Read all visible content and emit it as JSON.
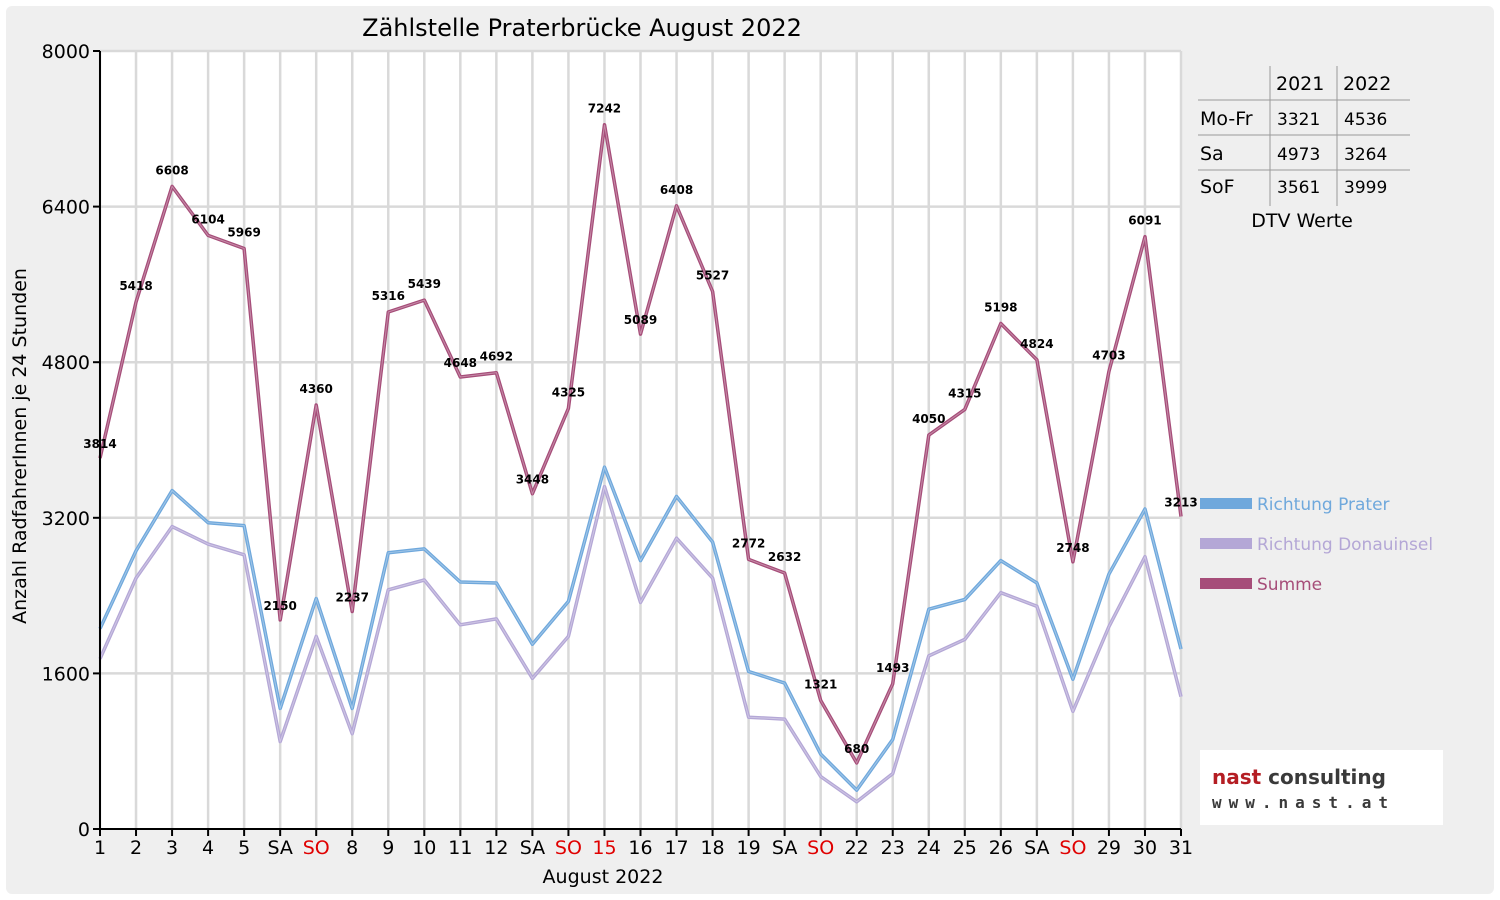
{
  "chart_data": {
    "type": "line",
    "title": "Zählstelle Praterbrücke August 2022",
    "xlabel": "August 2022",
    "ylabel": "Anzahl RadfahrerInnen je 24 Stunden",
    "ylim": [
      0,
      8000
    ],
    "yticks": [
      0,
      1600,
      3200,
      4800,
      6400,
      8000
    ],
    "grid": true,
    "legend_position": "right",
    "categories": [
      "1",
      "2",
      "3",
      "4",
      "5",
      "SA",
      "SO",
      "8",
      "9",
      "10",
      "11",
      "12",
      "SA",
      "SO",
      "15",
      "16",
      "17",
      "18",
      "19",
      "SA",
      "SO",
      "22",
      "23",
      "24",
      "25",
      "26",
      "SA",
      "SO",
      "29",
      "30",
      "31"
    ],
    "red_categories": [
      6,
      13,
      14,
      20,
      27
    ],
    "series": [
      {
        "name": "Richtung Prater",
        "color": "#6fa8dc",
        "values": [
          2060,
          2860,
          3480,
          3150,
          3120,
          1240,
          2370,
          1240,
          2840,
          2880,
          2540,
          2530,
          1900,
          2340,
          3720,
          2760,
          3420,
          2950,
          1620,
          1500,
          770,
          400,
          920,
          2260,
          2360,
          2760,
          2530,
          1540,
          2620,
          3290,
          1850
        ]
      },
      {
        "name": "Richtung Donauinsel",
        "color": "#b4a7d6",
        "values": [
          1750,
          2580,
          3110,
          2930,
          2820,
          900,
          1980,
          980,
          2460,
          2560,
          2100,
          2160,
          1550,
          1980,
          3520,
          2330,
          2990,
          2580,
          1150,
          1130,
          540,
          280,
          570,
          1780,
          1950,
          2430,
          2290,
          1210,
          2080,
          2800,
          1360
        ]
      },
      {
        "name": "Summe",
        "color": "#a64d79",
        "values": [
          3814,
          5418,
          6608,
          6104,
          5969,
          2150,
          4360,
          2237,
          5316,
          5439,
          4648,
          4692,
          3448,
          4325,
          7242,
          5089,
          6408,
          5527,
          2772,
          2632,
          1321,
          680,
          1493,
          4050,
          4315,
          5198,
          4824,
          2748,
          4703,
          6091,
          3213
        ]
      }
    ],
    "data_labels": [
      "3814",
      "5418",
      "6608",
      "6104",
      "5969",
      "2150",
      "4360",
      "2237",
      "5316",
      "5439",
      "4648",
      "4692",
      "3448",
      "4325",
      "7242",
      "5089",
      "6408",
      "5527",
      "2772",
      "2632",
      "1321",
      "680",
      "1493",
      "4050",
      "4315",
      "5198",
      "4824",
      "2748",
      "4703",
      "6091",
      "3213"
    ]
  },
  "dtv_table": {
    "caption": "DTV Werte",
    "headers": [
      "",
      "2021",
      "2022"
    ],
    "rows": [
      [
        "Mo-Fr",
        "3321",
        "4536"
      ],
      [
        "Sa",
        "4973",
        "3264"
      ],
      [
        "SoF",
        "3561",
        "3999"
      ]
    ]
  },
  "branding": {
    "name_part1": "nast",
    "name_part2": " consulting",
    "url": "www.nast.at"
  },
  "colors": {
    "background": "#efefef",
    "plot_background": "#ffffff",
    "grid": "#d9d9d9",
    "sunday_red": "#e00000"
  }
}
